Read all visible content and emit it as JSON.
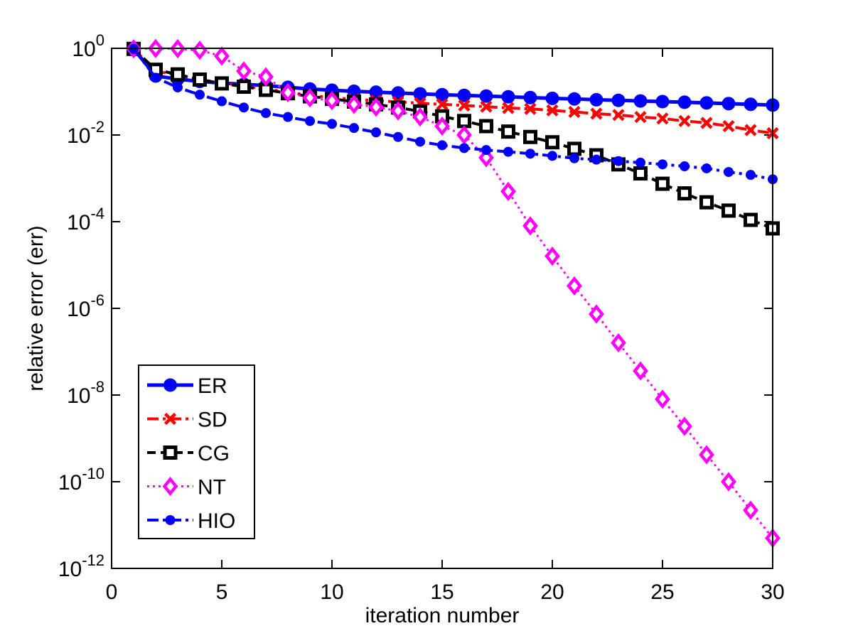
{
  "figure": {
    "background": "#ffffff",
    "axis_color": "#000000"
  },
  "chart_data": {
    "type": "line",
    "title": "",
    "xlabel": "iteration number",
    "ylabel": "relative error (err)",
    "x_ticks": [
      0,
      5,
      10,
      15,
      20,
      25,
      30
    ],
    "y_tick_base": "10",
    "y_tick_exponents": [
      0,
      -2,
      -4,
      -6,
      -8,
      -10,
      -12
    ],
    "xlim": [
      0,
      30
    ],
    "yscale": "log",
    "ylim_exponents": [
      -12,
      0
    ],
    "grid": false,
    "legend_position": "lower-left",
    "x": [
      1,
      2,
      3,
      4,
      5,
      6,
      7,
      8,
      9,
      10,
      11,
      12,
      13,
      14,
      15,
      16,
      17,
      18,
      19,
      20,
      21,
      22,
      23,
      24,
      25,
      26,
      27,
      28,
      29,
      30
    ],
    "series": [
      {
        "name": "ER",
        "color": "#0000ff",
        "line": "solid",
        "line_width": 5,
        "marker": "circle",
        "values": [
          0.97,
          0.23,
          0.195,
          0.172,
          0.158,
          0.148,
          0.138,
          0.126,
          0.115,
          0.108,
          0.102,
          0.097,
          0.093,
          0.089,
          0.085,
          0.082,
          0.079,
          0.076,
          0.073,
          0.07,
          0.068,
          0.065,
          0.063,
          0.061,
          0.059,
          0.057,
          0.055,
          0.053,
          0.051,
          0.049
        ]
      },
      {
        "name": "SD",
        "color": "#ff0000",
        "line": "dashdot",
        "line_width": 4,
        "marker": "x",
        "values": [
          0.97,
          0.3,
          0.24,
          0.19,
          0.16,
          0.135,
          0.115,
          0.097,
          0.082,
          0.073,
          0.067,
          0.062,
          0.058,
          0.054,
          0.051,
          0.048,
          0.045,
          0.042,
          0.04,
          0.037,
          0.034,
          0.031,
          0.029,
          0.026,
          0.024,
          0.021,
          0.019,
          0.016,
          0.013,
          0.011
        ]
      },
      {
        "name": "CG",
        "color": "#000000",
        "line": "dashed",
        "line_width": 4,
        "marker": "square",
        "values": [
          0.97,
          0.32,
          0.25,
          0.19,
          0.155,
          0.13,
          0.11,
          0.092,
          0.078,
          0.068,
          0.059,
          0.051,
          0.043,
          0.035,
          0.027,
          0.021,
          0.016,
          0.012,
          0.009,
          0.0068,
          0.0048,
          0.0034,
          0.0021,
          0.0013,
          0.00075,
          0.00045,
          0.00028,
          0.00018,
          0.00011,
          7e-05
        ]
      },
      {
        "name": "NT",
        "color": "#ff00ff",
        "line": "dotted",
        "line_width": 3,
        "marker": "diamond",
        "values": [
          0.97,
          0.99,
          0.98,
          0.9,
          0.66,
          0.3,
          0.22,
          0.095,
          0.072,
          0.062,
          0.051,
          0.044,
          0.036,
          0.026,
          0.016,
          0.01,
          0.003,
          0.0005,
          8e-05,
          1.6e-05,
          3.3e-06,
          7.4e-07,
          1.6e-07,
          3.6e-08,
          8e-09,
          1.9e-09,
          4.2e-10,
          1e-10,
          2.2e-11,
          5e-12
        ]
      },
      {
        "name": "HIO",
        "color": "#0000ff",
        "line": "dashdot",
        "line_width": 4,
        "marker": "circle-small",
        "values": [
          0.97,
          0.21,
          0.125,
          0.085,
          0.06,
          0.043,
          0.032,
          0.026,
          0.021,
          0.018,
          0.0145,
          0.0115,
          0.009,
          0.007,
          0.0058,
          0.005,
          0.0045,
          0.0041,
          0.0037,
          0.0033,
          0.0029,
          0.0027,
          0.0025,
          0.0023,
          0.0021,
          0.0019,
          0.0017,
          0.0014,
          0.0012,
          0.00095
        ]
      }
    ]
  }
}
